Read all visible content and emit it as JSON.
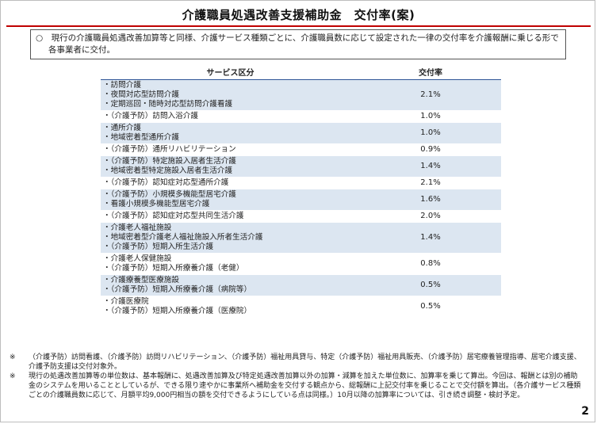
{
  "title": "介護職員処遇改善支援補助金　交付率(案)",
  "intro": "○　現行の介護職員処遇改善加算等と同様、介護サービス種類ごとに、介護職員数に応じて設定された一律の交付率を介護報酬に乗じる形で各事業者に交付。",
  "table": {
    "headers": {
      "service": "サービス区分",
      "rate": "交付率"
    },
    "rows": [
      {
        "lines": [
          "・訪問介護",
          "・夜間対応型訪問介護",
          "・定期巡回・随時対応型訪問介護看護"
        ],
        "rate": "2.1%",
        "shade": true
      },
      {
        "lines": [
          "・（介護予防）訪問入浴介護"
        ],
        "rate": "1.0%",
        "shade": false
      },
      {
        "lines": [
          "・通所介護",
          "・地域密着型通所介護"
        ],
        "rate": "1.0%",
        "shade": true
      },
      {
        "lines": [
          "・（介護予防）通所リハビリテーション"
        ],
        "rate": "0.9%",
        "shade": false
      },
      {
        "lines": [
          "・（介護予防）特定施設入居者生活介護",
          "・地域密着型特定施設入居者生活介護"
        ],
        "rate": "1.4%",
        "shade": true
      },
      {
        "lines": [
          "・（介護予防）認知症対応型通所介護"
        ],
        "rate": "2.1%",
        "shade": false
      },
      {
        "lines": [
          "・（介護予防）小規模多機能型居宅介護",
          "・看護小規模多機能型居宅介護"
        ],
        "rate": "1.6%",
        "shade": true
      },
      {
        "lines": [
          "・（介護予防）認知症対応型共同生活介護"
        ],
        "rate": "2.0%",
        "shade": false
      },
      {
        "lines": [
          "・介護老人福祉施設",
          "・地域密着型介護老人福祉施設入所者生活介護",
          "・（介護予防）短期入所生活介護"
        ],
        "rate": "1.4%",
        "shade": true
      },
      {
        "lines": [
          "・介護老人保健施設",
          "・（介護予防）短期入所療養介護（老健）"
        ],
        "rate": "0.8%",
        "shade": false
      },
      {
        "lines": [
          "・介護療養型医療施設",
          "・（介護予防）短期入所療養介護（病院等）"
        ],
        "rate": "0.5%",
        "shade": true
      },
      {
        "lines": [
          "・介護医療院",
          "・（介護予防）短期入所療養介護（医療院）"
        ],
        "rate": "0.5%",
        "shade": false
      }
    ]
  },
  "notes": [
    {
      "mark": "※",
      "text": "（介護予防）訪問看護、（介護予防）訪問リハビリテーション、（介護予防）福祉用具貸与、特定（介護予防）福祉用具販売、（介護予防）居宅療養管理指導、居宅介護支援、介護予防支援は交付対象外。"
    },
    {
      "mark": "※",
      "text": "現行の処遇改善加算等の単位数は、基本報酬に、処遇改善加算及び特定処遇改善加算以外の加算・減算を加えた単位数に、加算率を乗じて算出。今回は、報酬とは別の補助金のシステムを用いることとしているが、できる限り速やかに事業所へ補助金を交付する観点から、総報酬に上記交付率を乗じることで交付額を算出。（各介護サービス種類ごとの介護職員数に応じて、月額平均9,000円相当の額を交付できるようにしている点は同様。）10月以降の加算率については、引き続き調整・検討予定。"
    }
  ],
  "page_number": "2"
}
